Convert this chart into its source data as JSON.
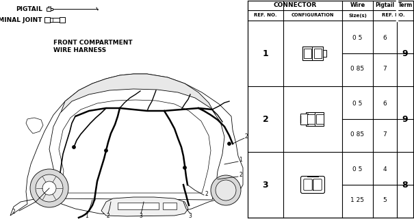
{
  "bg_color": "#ffffff",
  "left_panel": {
    "pigtail_label": "PIGTAIL",
    "terminal_label": "TERMINAL JOINT",
    "harness_label": "FRONT COMPARTMENT\nWIRE HARNESS"
  },
  "table": {
    "rows": [
      {
        "ref": "1",
        "wire_sizes": [
          "0 5",
          "0 85"
        ],
        "pigtail": [
          "6",
          "7"
        ],
        "term": "9"
      },
      {
        "ref": "2",
        "wire_sizes": [
          "0 5",
          "0 85"
        ],
        "pigtail": [
          "6",
          "7"
        ],
        "term": "9"
      },
      {
        "ref": "3",
        "wire_sizes": [
          "0 5",
          "1 25"
        ],
        "pigtail": [
          "4",
          "5"
        ],
        "term": "8"
      }
    ]
  }
}
